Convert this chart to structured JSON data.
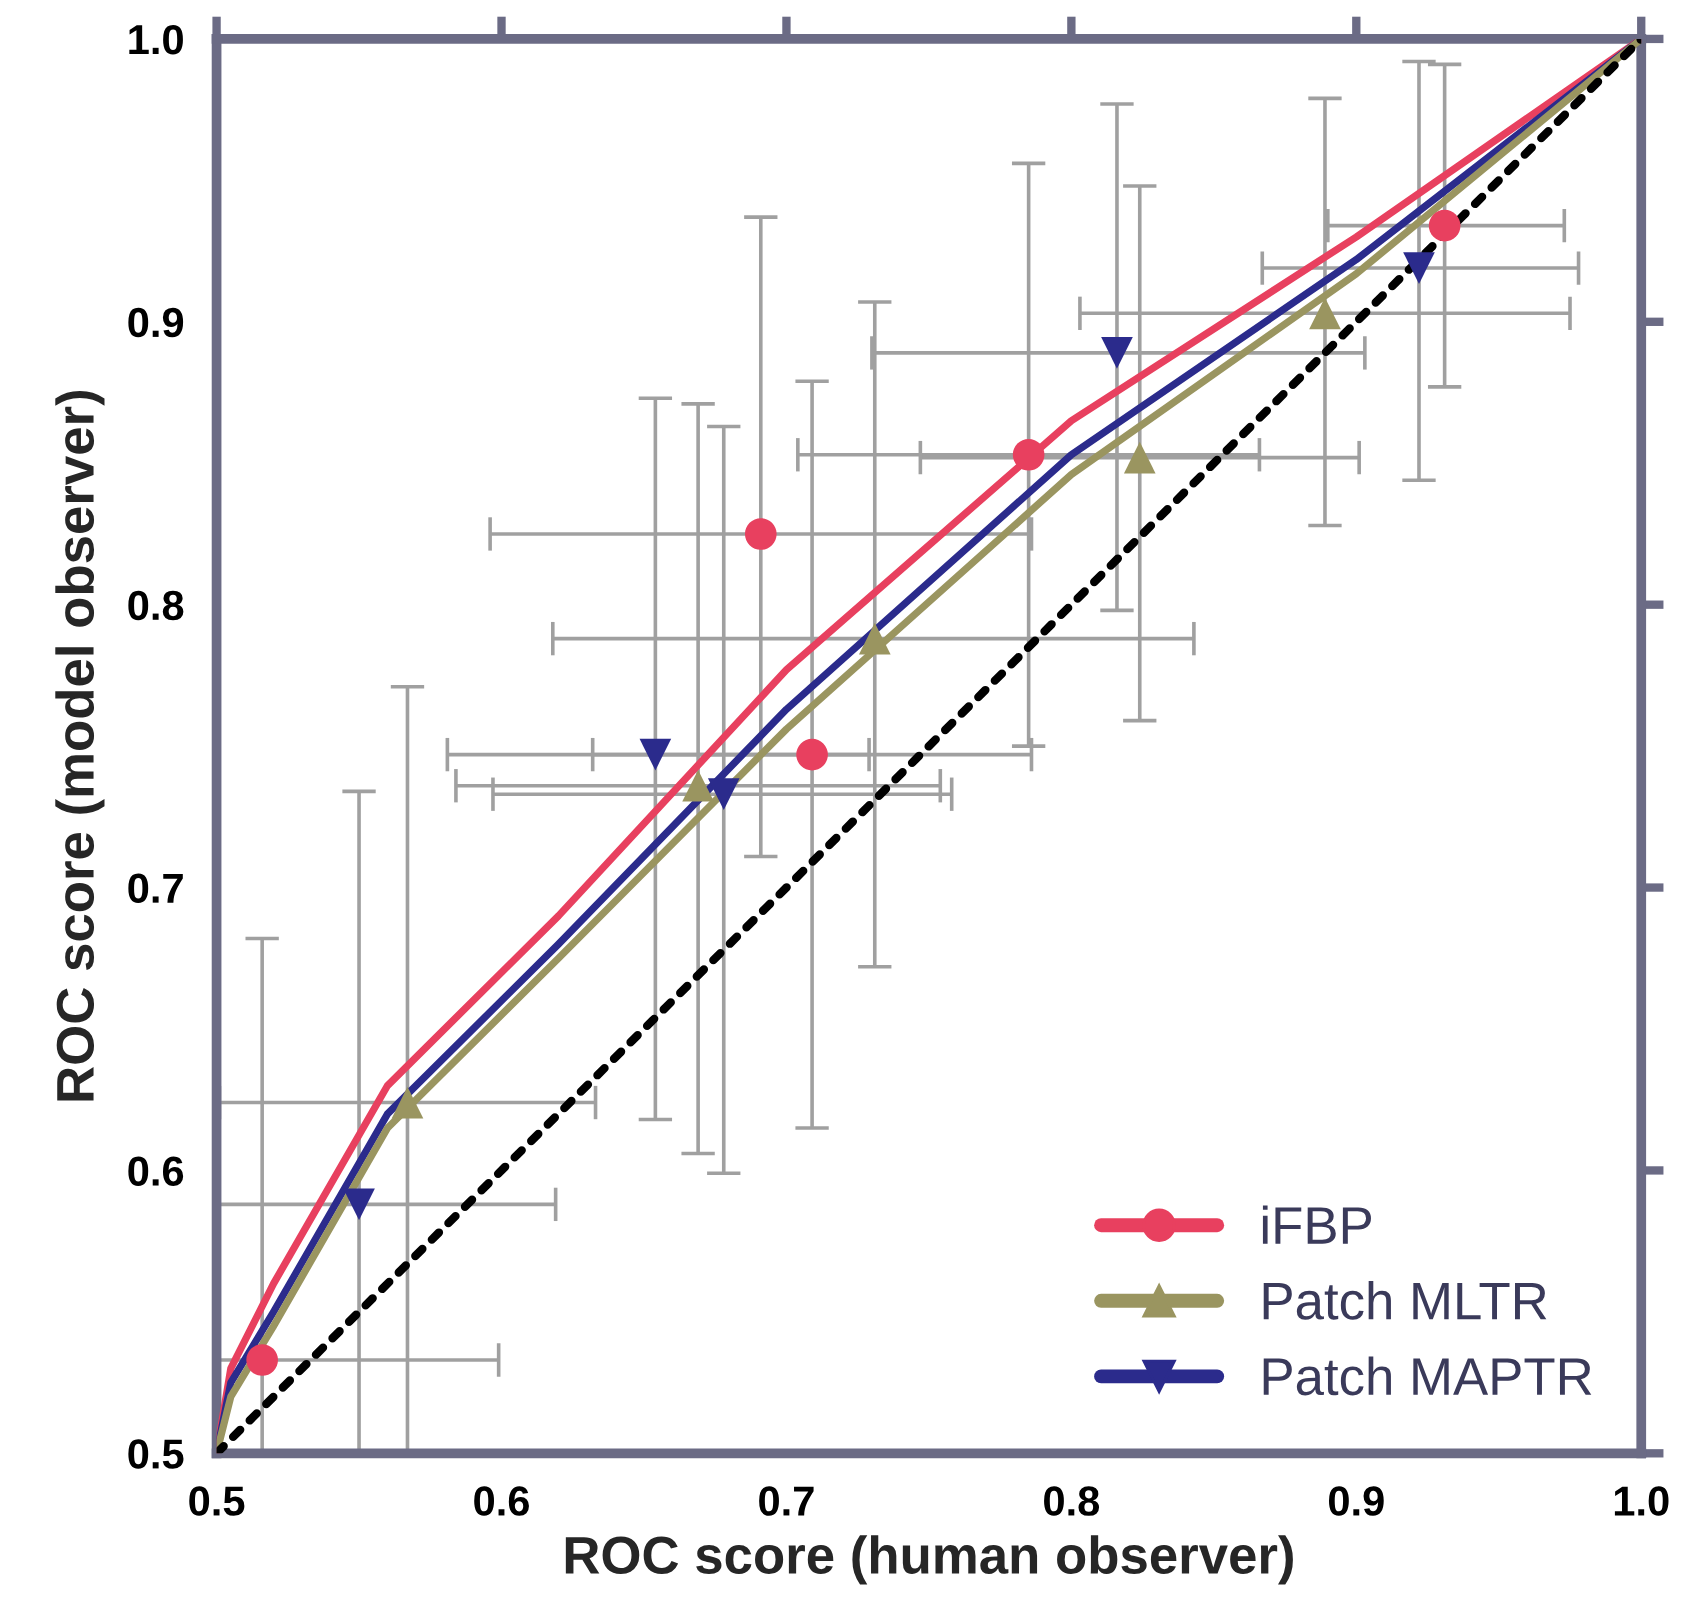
{
  "chart_data": {
    "type": "scatter",
    "xlabel": "ROC score (human observer)",
    "ylabel": "ROC score (model observer)",
    "xlim": [
      0.5,
      1.0
    ],
    "ylim": [
      0.5,
      1.0
    ],
    "xticks": [
      0.5,
      0.6,
      0.7,
      0.8,
      0.9,
      {
        "value": 1,
        "label": "1.0"
      }
    ],
    "yticks": [
      0.5,
      0.6,
      0.7,
      0.8,
      0.9,
      {
        "value": 1,
        "label": "1.0"
      }
    ],
    "grid": false,
    "legend": "bottom right",
    "series": [
      {
        "name": "iFBP",
        "marker": "circle",
        "color": "#e8405f",
        "x": [
          0.516,
          0.691,
          0.709,
          0.785,
          0.931
        ],
        "values": [
          0.533,
          0.825,
          0.747,
          0.853,
          0.934
        ],
        "errors": [
          [
            0.5,
            0.682
          ],
          [
            0.711,
            0.937
          ],
          [
            0.615,
            0.879
          ],
          [
            0.75,
            0.956
          ],
          [
            0.877,
            0.991
          ]
        ],
        "xerrors": [
          [
            0.5,
            0.599
          ],
          [
            0.596,
            0.786
          ],
          [
            0.632,
            0.786
          ],
          [
            0.704,
            0.866
          ],
          [
            0.89,
            0.973
          ]
        ]
      },
      {
        "name": "Patch MLTR",
        "marker": "triangle",
        "color": "#9a9560",
        "x": [
          0.567,
          0.669,
          0.731,
          0.824,
          0.889
        ],
        "values": [
          0.624,
          0.736,
          0.788,
          0.852,
          0.903
        ],
        "errors": [
          [
            0.5,
            0.771
          ],
          [
            0.606,
            0.871
          ],
          [
            0.672,
            0.907
          ],
          [
            0.759,
            0.948
          ],
          [
            0.828,
            0.979
          ]
        ],
        "xerrors": [
          [
            0.501,
            0.633
          ],
          [
            0.584,
            0.754
          ],
          [
            0.618,
            0.843
          ],
          [
            0.747,
            0.901
          ],
          [
            0.803,
            0.975
          ]
        ]
      },
      {
        "name": "Patch MAPTR",
        "marker": "triangle_down",
        "color": "#2b2b8c",
        "x": [
          0.55,
          0.654,
          0.678,
          0.816,
          0.922
        ],
        "values": [
          0.588,
          0.747,
          0.733,
          0.889,
          0.919
        ],
        "errors": [
          [
            0.5,
            0.734
          ],
          [
            0.618,
            0.873
          ],
          [
            0.599,
            0.863
          ],
          [
            0.798,
            0.977
          ],
          [
            0.844,
            0.992
          ]
        ],
        "xerrors": [
          [
            0.5,
            0.619
          ],
          [
            0.581,
            0.729
          ],
          [
            0.597,
            0.758
          ],
          [
            0.73,
            0.903
          ],
          [
            0.867,
            0.978
          ]
        ]
      },
      {
        "type": "line",
        "color": "#e8405f",
        "line_style": "solid",
        "x": [
          0.5,
          0.505,
          0.52,
          0.56,
          0.62,
          0.7,
          0.8,
          0.9,
          1.0
        ],
        "values": [
          0.5,
          0.53,
          0.56,
          0.63,
          0.69,
          0.777,
          0.865,
          0.93,
          1.0
        ]
      },
      {
        "type": "line",
        "color": "#2b2b8c",
        "line_style": "solid",
        "x": [
          0.5,
          0.505,
          0.52,
          0.56,
          0.62,
          0.7,
          0.8,
          0.9,
          1.0
        ],
        "values": [
          0.5,
          0.525,
          0.55,
          0.62,
          0.68,
          0.763,
          0.853,
          0.922,
          1.0
        ]
      },
      {
        "type": "line",
        "color": "#9a9560",
        "line_style": "solid",
        "x": [
          0.5,
          0.505,
          0.52,
          0.56,
          0.62,
          0.7,
          0.8,
          0.9,
          1.0
        ],
        "values": [
          0.5,
          0.52,
          0.545,
          0.615,
          0.675,
          0.756,
          0.846,
          0.917,
          1.0
        ]
      },
      {
        "type": "line",
        "color": "#000000",
        "line_style": "dotted",
        "x": [
          0.5,
          1.0
        ],
        "values": [
          0.5,
          1.0
        ]
      }
    ]
  }
}
